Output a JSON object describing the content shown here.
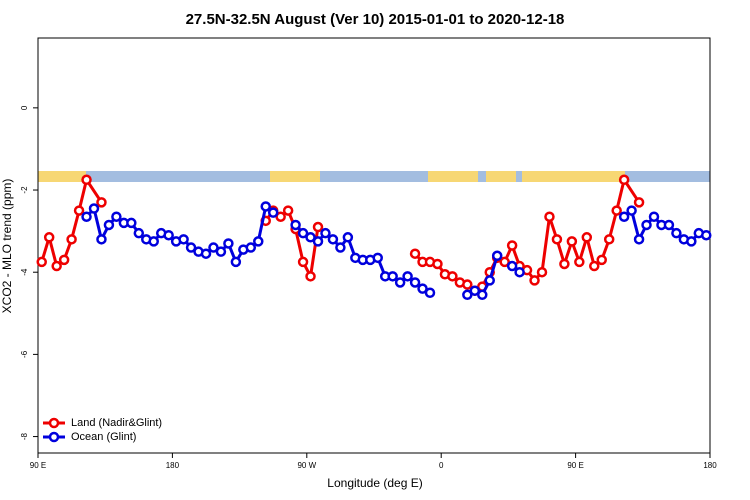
{
  "chart_data": {
    "type": "line",
    "title": "27.5N-32.5N August (Ver 10)   2015-01-01 to 2020-12-18",
    "xlabel": "Longitude (deg E)",
    "ylabel": "XCO2 - MLO trend (ppm)",
    "xlim": [
      90,
      540
    ],
    "xticks": [
      {
        "value": 90,
        "label": "90 E"
      },
      180,
      {
        "value": 270,
        "label": "90 W"
      },
      {
        "value": 360,
        "label": "0"
      },
      {
        "value": 450,
        "label": "90 E"
      },
      {
        "value": 540,
        "label": "180"
      }
    ],
    "ylim": [
      -8.4,
      1.7
    ],
    "yticks": [
      0,
      -2,
      -4,
      -6,
      -8
    ],
    "legend": "bottomleft",
    "series": [
      {
        "name": "Land (Nadir&Glint)",
        "color": "#ee0000",
        "x": [
          92.5,
          97.5,
          102.5,
          107.5,
          112.5,
          117.5,
          122.5,
          132.5,
          137.5,
          242.5,
          247.5,
          252.5,
          257.5,
          262.5,
          267.5,
          272.5,
          277.5,
          282.5,
          342.5,
          347.5,
          352.5,
          357.5,
          362.5,
          367.5,
          372.5,
          377.5,
          382.5,
          387.5,
          392.5,
          397.5,
          402.5,
          407.5,
          412.5,
          417.5,
          422.5,
          427.5,
          432.5,
          437.5,
          442.5,
          447.5,
          452.5,
          457.5,
          462.5,
          467.5,
          472.5,
          477.5,
          482.5,
          492.5
        ],
        "values": [
          -3.75,
          -3.15,
          -3.85,
          -3.7,
          -3.2,
          -2.5,
          -1.75,
          -2.3,
          null,
          -2.75,
          -2.5,
          -2.65,
          -2.5,
          -2.95,
          -3.75,
          -4.1,
          -2.9,
          null,
          -3.55,
          -3.75,
          -3.75,
          -3.8,
          -4.05,
          -4.1,
          -4.25,
          -4.3,
          -4.45,
          -4.35,
          -4.0,
          -3.65,
          -3.75,
          -3.35,
          -3.85,
          -3.95,
          -4.2,
          -4.0,
          -2.65,
          -3.2,
          -3.8,
          -3.25,
          -3.75,
          -3.15,
          -3.85,
          -3.7,
          -3.2,
          -2.5,
          -1.75,
          -2.3
        ]
      },
      {
        "name": "Ocean (Glint)",
        "color": "#0000dd",
        "x": [
          122.5,
          127.5,
          132.5,
          137.5,
          142.5,
          147.5,
          152.5,
          157.5,
          162.5,
          167.5,
          172.5,
          177.5,
          182.5,
          187.5,
          192.5,
          197.5,
          202.5,
          207.5,
          212.5,
          217.5,
          222.5,
          227.5,
          232.5,
          237.5,
          242.5,
          247.5,
          252.5,
          262.5,
          267.5,
          272.5,
          277.5,
          282.5,
          287.5,
          292.5,
          297.5,
          302.5,
          307.5,
          312.5,
          317.5,
          322.5,
          327.5,
          332.5,
          337.5,
          342.5,
          347.5,
          352.5,
          357.5,
          377.5,
          382.5,
          387.5,
          392.5,
          397.5,
          402.5,
          407.5,
          412.5,
          417.5,
          482.5,
          487.5,
          492.5,
          497.5,
          502.5,
          507.5,
          512.5,
          517.5,
          522.5,
          527.5,
          532.5,
          537.5
        ],
        "values": [
          -2.65,
          -2.45,
          -3.2,
          -2.85,
          -2.65,
          -2.8,
          -2.8,
          -3.05,
          -3.2,
          -3.25,
          -3.05,
          -3.1,
          -3.25,
          -3.2,
          -3.4,
          -3.5,
          -3.55,
          -3.4,
          -3.5,
          -3.3,
          -3.75,
          -3.45,
          -3.4,
          -3.25,
          -2.4,
          -2.55,
          null,
          -2.85,
          -3.05,
          -3.15,
          -3.25,
          -3.05,
          -3.2,
          -3.4,
          -3.15,
          -3.65,
          -3.7,
          -3.7,
          -3.65,
          -4.1,
          -4.1,
          -4.25,
          -4.1,
          -4.25,
          -4.4,
          -4.5,
          null,
          -4.55,
          -4.45,
          -4.55,
          -4.2,
          -3.6,
          null,
          -3.85,
          -4.0,
          null,
          -2.65,
          -2.5,
          -3.2,
          -2.85,
          -2.65,
          -2.85,
          -2.85,
          -3.05,
          -3.2,
          -3.25,
          -3.05,
          -3.1
        ]
      }
    ]
  }
}
